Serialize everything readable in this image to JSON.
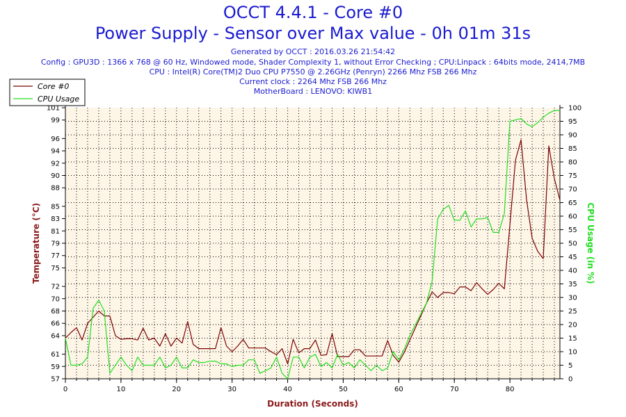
{
  "header": {
    "title": "OCCT 4.4.1 - Core #0",
    "subtitle": "Power Supply - Sensor over Max value - 0h 01m 31s",
    "generated": "Generated by OCCT : 2016.03.26 21:54:42",
    "config": "Config : GPU3D : 1366 x 768 @ 60 Hz, Windowed mode, Shader Complexity 1, without Error Checking ; CPU:Linpack : 64bits mode, 2414,7MB",
    "cpu": "CPU : Intel(R) Core(TM)2 Duo CPU P7550 @ 2.26GHz (Penryn) 2266 Mhz FSB 266 Mhz",
    "clock": "Current clock : 2264 Mhz FSB 266 Mhz",
    "motherboard": "MotherBoard : LENOVO: KIWB1"
  },
  "colors": {
    "title": "#1a1ad0",
    "axis_title": "#8b1a1a",
    "temp_line": "#7a0000",
    "cpu_line": "#22dd22",
    "plot_bg": "#fdf5e6",
    "grid": "#000000"
  },
  "chart_data": {
    "type": "line",
    "xlabel": "Duration (Seconds)",
    "ylabel_left": "Temperature (°C)",
    "ylabel_right": "CPU Usage (in %)",
    "xlim": [
      0,
      89
    ],
    "x_ticks": [
      0,
      10,
      20,
      30,
      40,
      50,
      60,
      70,
      80
    ],
    "ylim_left": [
      57,
      101
    ],
    "y_ticks_left": [
      57,
      59,
      61,
      64,
      66,
      68,
      70,
      72,
      75,
      77,
      79,
      81,
      83,
      85,
      88,
      90,
      92,
      94,
      96,
      99,
      101
    ],
    "ylim_right": [
      0,
      100
    ],
    "y_ticks_right": [
      0,
      5,
      10,
      15,
      20,
      25,
      30,
      35,
      40,
      45,
      50,
      55,
      60,
      65,
      70,
      75,
      80,
      85,
      90,
      95,
      100
    ],
    "series": [
      {
        "name": "Core #0",
        "axis": "left",
        "points": [
          [
            0,
            63.6
          ],
          [
            1,
            64.5
          ],
          [
            2,
            65.3
          ],
          [
            3,
            63.3
          ],
          [
            4,
            66
          ],
          [
            5,
            67
          ],
          [
            6,
            68
          ],
          [
            7,
            67.2
          ],
          [
            8,
            67.2
          ],
          [
            9,
            64
          ],
          [
            10,
            63.4
          ],
          [
            11,
            63.5
          ],
          [
            12,
            63.5
          ],
          [
            13,
            63.3
          ],
          [
            14,
            65.2
          ],
          [
            15,
            63.3
          ],
          [
            16,
            63.6
          ],
          [
            17,
            62.3
          ],
          [
            18,
            64.3
          ],
          [
            19,
            62.3
          ],
          [
            20,
            63.6
          ],
          [
            21,
            62.8
          ],
          [
            22,
            66.3
          ],
          [
            23,
            62.6
          ],
          [
            24,
            61.9
          ],
          [
            25,
            61.9
          ],
          [
            26,
            61.9
          ],
          [
            27,
            61.9
          ],
          [
            28,
            65.3
          ],
          [
            29,
            62.3
          ],
          [
            30,
            61.4
          ],
          [
            31,
            62.3
          ],
          [
            32,
            63.4
          ],
          [
            33,
            62
          ],
          [
            34,
            62
          ],
          [
            35,
            62
          ],
          [
            36,
            62
          ],
          [
            37,
            61.4
          ],
          [
            38,
            60.9
          ],
          [
            39,
            61.9
          ],
          [
            40,
            59.4
          ],
          [
            41,
            63.4
          ],
          [
            42,
            61.2
          ],
          [
            43,
            61.9
          ],
          [
            44,
            61.9
          ],
          [
            45,
            63.3
          ],
          [
            46,
            60.8
          ],
          [
            47,
            60.9
          ],
          [
            48,
            64.3
          ],
          [
            49,
            60.6
          ],
          [
            50,
            60.6
          ],
          [
            51,
            60.6
          ],
          [
            52,
            61.7
          ],
          [
            53,
            61.7
          ],
          [
            54,
            60.7
          ],
          [
            55,
            60.7
          ],
          [
            56,
            60.7
          ],
          [
            57,
            60.7
          ],
          [
            58,
            63.2
          ],
          [
            59,
            60.8
          ],
          [
            60,
            59.7
          ],
          [
            61,
            61.3
          ],
          [
            62,
            63.3
          ],
          [
            63,
            65.3
          ],
          [
            64,
            67.3
          ],
          [
            65,
            69.3
          ],
          [
            66,
            71.1
          ],
          [
            67,
            70.2
          ],
          [
            68,
            71
          ],
          [
            69,
            71
          ],
          [
            70,
            70.8
          ],
          [
            71,
            71.9
          ],
          [
            72,
            71.9
          ],
          [
            73,
            71.3
          ],
          [
            74,
            72.6
          ],
          [
            75,
            71.6
          ],
          [
            76,
            70.7
          ],
          [
            77,
            71.5
          ],
          [
            78,
            72.5
          ],
          [
            79,
            71.6
          ],
          [
            80,
            82
          ],
          [
            81,
            92.5
          ],
          [
            82,
            95.8
          ],
          [
            83,
            86
          ],
          [
            84,
            79.8
          ],
          [
            85,
            77.7
          ],
          [
            86,
            76.5
          ],
          [
            87,
            94.8
          ],
          [
            88,
            89.5
          ],
          [
            89,
            86
          ]
        ]
      },
      {
        "name": "CPU Usage",
        "axis": "right",
        "points": [
          [
            0,
            15
          ],
          [
            1,
            5
          ],
          [
            2,
            5
          ],
          [
            3,
            5.5
          ],
          [
            4,
            8
          ],
          [
            5,
            26
          ],
          [
            6,
            29
          ],
          [
            7,
            25
          ],
          [
            8,
            2
          ],
          [
            9,
            5
          ],
          [
            10,
            8
          ],
          [
            11,
            5
          ],
          [
            12,
            3
          ],
          [
            13,
            8
          ],
          [
            14,
            5
          ],
          [
            15,
            5
          ],
          [
            16,
            5
          ],
          [
            17,
            8
          ],
          [
            18,
            4
          ],
          [
            19,
            5
          ],
          [
            20,
            8
          ],
          [
            21,
            4
          ],
          [
            22,
            4
          ],
          [
            23,
            7
          ],
          [
            24,
            6
          ],
          [
            25,
            6
          ],
          [
            26,
            6.5
          ],
          [
            27,
            6.5
          ],
          [
            28,
            5.5
          ],
          [
            29,
            5.5
          ],
          [
            30,
            4.5
          ],
          [
            31,
            5
          ],
          [
            32,
            5
          ],
          [
            33,
            7
          ],
          [
            34,
            7
          ],
          [
            35,
            2
          ],
          [
            36,
            3
          ],
          [
            37,
            4
          ],
          [
            38,
            8
          ],
          [
            39,
            2
          ],
          [
            40,
            0
          ],
          [
            41,
            8
          ],
          [
            42,
            8
          ],
          [
            43,
            4
          ],
          [
            44,
            8
          ],
          [
            45,
            9
          ],
          [
            46,
            4.5
          ],
          [
            47,
            6
          ],
          [
            48,
            4
          ],
          [
            49,
            9
          ],
          [
            50,
            5
          ],
          [
            51,
            6
          ],
          [
            52,
            4
          ],
          [
            53,
            7
          ],
          [
            54,
            5
          ],
          [
            55,
            3
          ],
          [
            56,
            5
          ],
          [
            57,
            3
          ],
          [
            58,
            4
          ],
          [
            59,
            10
          ],
          [
            60,
            7
          ],
          [
            61,
            11
          ],
          [
            62,
            16
          ],
          [
            63,
            20
          ],
          [
            64,
            24
          ],
          [
            65,
            28
          ],
          [
            66,
            36
          ],
          [
            67,
            59
          ],
          [
            68,
            62.5
          ],
          [
            69,
            64
          ],
          [
            70,
            58.5
          ],
          [
            71,
            58.5
          ],
          [
            72,
            62
          ],
          [
            73,
            56
          ],
          [
            74,
            59
          ],
          [
            75,
            59
          ],
          [
            76,
            59.5
          ],
          [
            77,
            54
          ],
          [
            78,
            54
          ],
          [
            79,
            61
          ],
          [
            80,
            95
          ],
          [
            81,
            95.5
          ],
          [
            82,
            96
          ],
          [
            83,
            94
          ],
          [
            84,
            93
          ],
          [
            85,
            94.5
          ],
          [
            86,
            96.5
          ],
          [
            87,
            98
          ],
          [
            88,
            99
          ],
          [
            89,
            99
          ]
        ]
      }
    ]
  }
}
